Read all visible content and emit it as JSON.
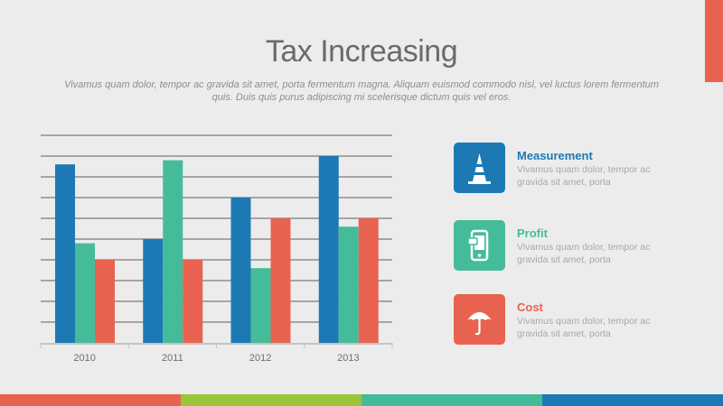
{
  "slide": {
    "title": "Tax Increasing",
    "subtitle": "Vivamus quam dolor, tempor ac gravida sit amet, porta fermentum magna. Aliquam euismod commodo nisl, vel luctus lorem fermentum quis. Duis quis purus adipiscing mi scelerisque dictum quis vel eros."
  },
  "colors": {
    "blue": "#1d79b4",
    "green": "#45bc99",
    "red": "#e8634f",
    "lime": "#9bc43a",
    "text_title": "#6a6a6a"
  },
  "chart_data": {
    "type": "bar",
    "categories": [
      "2010",
      "2011",
      "2012",
      "2013"
    ],
    "series": [
      {
        "name": "Measurement",
        "color": "#1d79b4",
        "values": [
          8.6,
          5.0,
          7.0,
          9.0
        ]
      },
      {
        "name": "Profit",
        "color": "#45bc99",
        "values": [
          4.8,
          8.8,
          3.6,
          5.6
        ]
      },
      {
        "name": "Cost",
        "color": "#e8634f",
        "values": [
          4.0,
          4.0,
          6.0,
          6.0
        ]
      }
    ],
    "ylim": [
      0,
      10
    ],
    "grid": true,
    "legend": "right"
  },
  "legend": [
    {
      "icon": "traffic-cone-icon",
      "title": "Measurement",
      "desc": "Vivamus quam dolor, tempor ac gravida sit amet, porta",
      "color": "#1d79b4"
    },
    {
      "icon": "mobile-phone-icon",
      "title": "Profit",
      "desc": "Vivamus quam dolor, tempor ac gravida sit amet, porta",
      "color": "#45bc99"
    },
    {
      "icon": "umbrella-icon",
      "title": "Cost",
      "desc": "Vivamus quam dolor, tempor ac gravida sit amet, porta",
      "color": "#e8634f"
    }
  ],
  "bottom_bar": [
    "#e8634f",
    "#9bc43a",
    "#45bc99",
    "#1d79b4"
  ]
}
